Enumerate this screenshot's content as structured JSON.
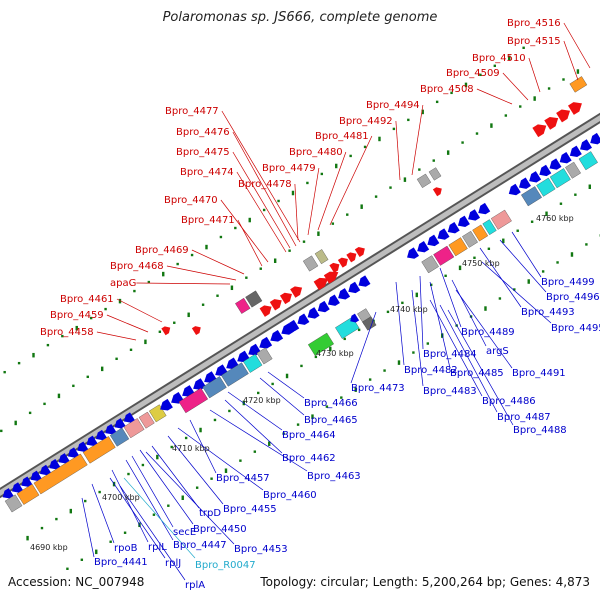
{
  "title": "Polaromonas sp. JS666, complete genome",
  "accession": "Accession: NC_007948",
  "topology": "Topology: circular; Length: 5,200,264 bp; Genes: 4,873",
  "colors": {
    "forward_label": "#cc0000",
    "reverse_label": "#0000cc",
    "rna_label": "#22aacc",
    "backbone": "#888888",
    "gene_forward": "#ee1111",
    "gene_reverse": "#0000dd",
    "tick": "#117711",
    "orange": "#ff9922",
    "cyan": "#22dddd",
    "pink": "#ee2288",
    "green": "#33cc33",
    "gray": "#aaaaaa",
    "steel": "#5588bb"
  },
  "scale_labels": [
    "4690 kbp",
    "4700 kbp",
    "4710 kbp",
    "4720 kbp",
    "4730 kbp",
    "4740 kbp",
    "4750 kbp",
    "4760 kbp"
  ],
  "forward_labels": [
    "Bpro_4516",
    "Bpro_4515",
    "Bpro_4510",
    "Bpro_4509",
    "Bpro_4508",
    "Bpro_4494",
    "Bpro_4492",
    "Bpro_4481",
    "Bpro_4480",
    "Bpro_4479",
    "Bpro_4478",
    "Bpro_4477",
    "Bpro_4476",
    "Bpro_4475",
    "Bpro_4474",
    "Bpro_4470",
    "Bpro_4471",
    "Bpro_4469",
    "Bpro_4468",
    "apaG",
    "Bpro_4461",
    "Bpro_4459",
    "Bpro_4458"
  ],
  "reverse_labels": [
    "Bpro_4499",
    "Bpro_4496",
    "Bpro_4493",
    "Bpro_4495",
    "Bpro_4489",
    "argS",
    "Bpro_4491",
    "Bpro_4484",
    "Bpro_4485",
    "Bpro_4482",
    "Bpro_4483",
    "Bpro_4486",
    "Bpro_4487",
    "Bpro_4488",
    "Bpro_4473",
    "Bpro_4466",
    "Bpro_4465",
    "Bpro_4464",
    "Bpro_4462",
    "Bpro_4463",
    "Bpro_4457",
    "Bpro_4460",
    "Bpro_4455",
    "trpD",
    "Bpro_4450",
    "secE",
    "Bpro_4447",
    "Bpro_4453",
    "rplL",
    "rpoB",
    "Bpro_4441",
    "rplJ",
    "rplA"
  ],
  "rna_labels": [
    "Bpro_R0047"
  ]
}
